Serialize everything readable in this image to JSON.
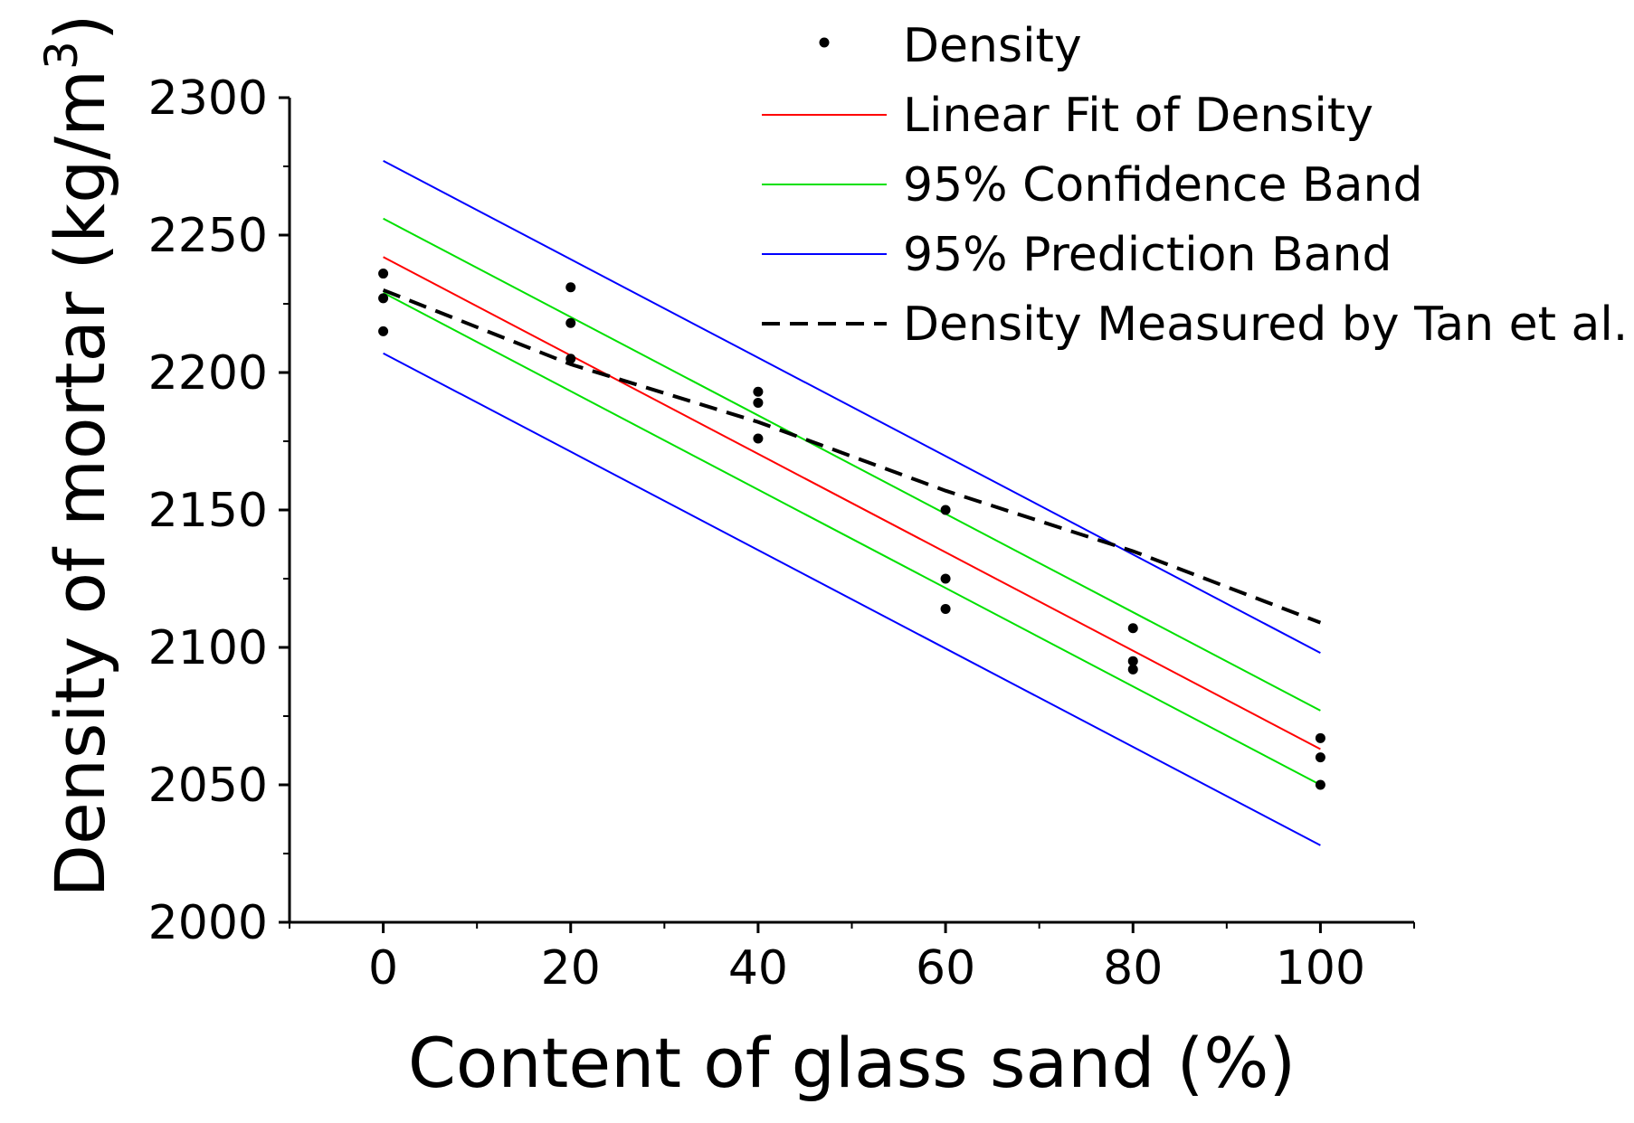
{
  "chart_data": {
    "type": "scatter",
    "xlabel": "Content of glass sand (%)",
    "ylabel": "Density of mortar (kg/m",
    "ylabel_superscript": "3",
    "ylabel_suffix": ")",
    "xlim": [
      -10,
      110
    ],
    "ylim": [
      2000,
      2300
    ],
    "x_ticks": [
      0,
      20,
      40,
      60,
      80,
      100
    ],
    "x_tick_labels": [
      "0",
      "20",
      "40",
      "60",
      "80",
      "100"
    ],
    "y_ticks": [
      2000,
      2050,
      2100,
      2150,
      2200,
      2250,
      2300
    ],
    "y_tick_labels": [
      "2000",
      "2050",
      "2100",
      "2150",
      "2200",
      "2250",
      "2300"
    ],
    "legend": {
      "position": "top-right",
      "entries": [
        {
          "label": "Density",
          "style": "point",
          "color": "#000000"
        },
        {
          "label": "Linear Fit of Density",
          "style": "solid",
          "color": "#ff0000"
        },
        {
          "label": "95% Confidence Band",
          "style": "solid",
          "color": "#00e000"
        },
        {
          "label": "95% Prediction Band",
          "style": "solid",
          "color": "#0000ff"
        },
        {
          "label": "Density Measured by Tan et al.",
          "style": "dashed",
          "color": "#000000"
        }
      ]
    },
    "series": [
      {
        "name": "Density",
        "kind": "scatter",
        "color": "#000000",
        "points": [
          [
            0,
            2236
          ],
          [
            0,
            2227
          ],
          [
            0,
            2215
          ],
          [
            20,
            2231
          ],
          [
            20,
            2218
          ],
          [
            20,
            2205
          ],
          [
            40,
            2193
          ],
          [
            40,
            2189
          ],
          [
            40,
            2176
          ],
          [
            60,
            2150
          ],
          [
            60,
            2125
          ],
          [
            60,
            2114
          ],
          [
            80,
            2107
          ],
          [
            80,
            2095
          ],
          [
            80,
            2092
          ],
          [
            100,
            2067
          ],
          [
            100,
            2060
          ],
          [
            100,
            2050
          ]
        ]
      },
      {
        "name": "Linear Fit of Density",
        "kind": "line",
        "color": "#ff0000",
        "x": [
          0,
          100
        ],
        "y": [
          2242,
          2063
        ]
      },
      {
        "name": "95% Confidence Band (upper)",
        "kind": "line",
        "color": "#00e000",
        "x": [
          0,
          100
        ],
        "y": [
          2256,
          2077
        ]
      },
      {
        "name": "95% Confidence Band (lower)",
        "kind": "line",
        "color": "#00e000",
        "x": [
          0,
          100
        ],
        "y": [
          2229,
          2050
        ]
      },
      {
        "name": "95% Prediction Band (upper)",
        "kind": "line",
        "color": "#0000ff",
        "x": [
          0,
          100
        ],
        "y": [
          2277,
          2098
        ]
      },
      {
        "name": "95% Prediction Band (lower)",
        "kind": "line",
        "color": "#0000ff",
        "x": [
          0,
          100
        ],
        "y": [
          2207,
          2028
        ]
      },
      {
        "name": "Density Measured by Tan et al.",
        "kind": "line",
        "dashed": true,
        "color": "#000000",
        "x": [
          0,
          20,
          40,
          60,
          80,
          100
        ],
        "y": [
          2230,
          2203,
          2182,
          2157,
          2135,
          2109
        ]
      }
    ]
  }
}
